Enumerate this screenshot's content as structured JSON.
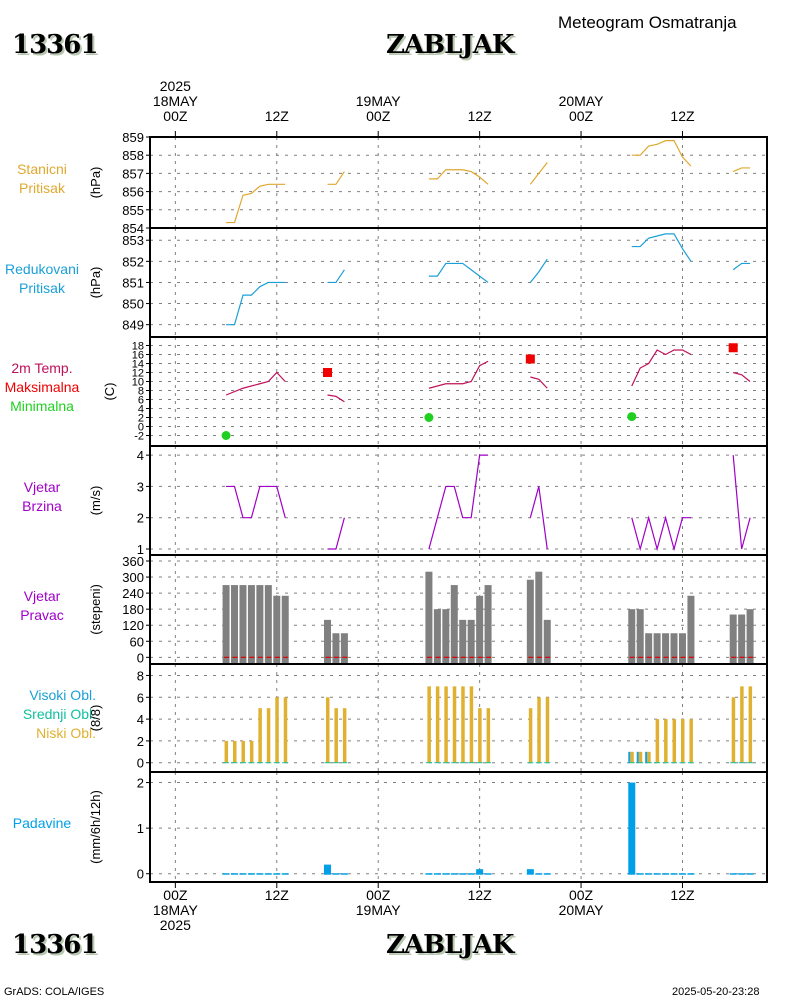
{
  "header": {
    "station_id": "13361",
    "station_name": "ZABLJAK",
    "subtitle": "Meteogram Osmatranja"
  },
  "footer": {
    "station_id": "13361",
    "station_name": "ZABLJAK",
    "credit": "GrADS: COLA/IGES",
    "timestamp": "2025-05-20-23:28"
  },
  "time_axis": {
    "top_labels": [
      {
        "lines": [
          "2025",
          "18MAY",
          "00Z"
        ]
      },
      {
        "lines": [
          "",
          "",
          "12Z"
        ]
      },
      {
        "lines": [
          "",
          "19MAY",
          "00Z"
        ]
      },
      {
        "lines": [
          "",
          "",
          "12Z"
        ]
      },
      {
        "lines": [
          "",
          "20MAY",
          "00Z"
        ]
      },
      {
        "lines": [
          "",
          "",
          "12Z"
        ]
      }
    ],
    "bottom_labels": [
      {
        "lines": [
          "00Z",
          "18MAY",
          "2025"
        ]
      },
      {
        "lines": [
          "12Z",
          "",
          ""
        ]
      },
      {
        "lines": [
          "00Z",
          "19MAY",
          ""
        ]
      },
      {
        "lines": [
          "12Z",
          "",
          ""
        ]
      },
      {
        "lines": [
          "00Z",
          "20MAY",
          ""
        ]
      },
      {
        "lines": [
          "12Z",
          "",
          ""
        ]
      }
    ],
    "start": "2025-05-18 00Z",
    "hours_range": [
      -3,
      70
    ]
  },
  "colors": {
    "station_pressure": "#e0a830",
    "reduced_pressure": "#1aa0d8",
    "temp": "#c0105a",
    "tmax": "#f00000",
    "tmin": "#20d020",
    "wind": "#a000c8",
    "wind_dir_bar": "#808080",
    "calm_marker": "#e00000",
    "cloud_high": "#1aa0d8",
    "cloud_mid": "#10c0a0",
    "cloud_low": "#e0b030",
    "precip": "#00a0e8"
  },
  "chart_data": [
    {
      "type": "line",
      "id": "station_pressure",
      "labels": [
        "Stanicni",
        "Pritisak"
      ],
      "ylabel": "(hPa)",
      "ylim": [
        854,
        859
      ],
      "yticks": [
        854,
        855,
        856,
        857,
        858,
        859
      ],
      "series": [
        {
          "name": "Stanicni Pritisak",
          "segments": [
            {
              "x": [
                6,
                7,
                8,
                9,
                10,
                11,
                12,
                13
              ],
              "y": [
                854.3,
                854.3,
                855.8,
                855.9,
                856.3,
                856.4,
                856.4,
                856.4
              ]
            },
            {
              "x": [
                18,
                19,
                20
              ],
              "y": [
                856.4,
                856.4,
                857.1
              ]
            },
            {
              "x": [
                30,
                31,
                32,
                33,
                34,
                35,
                36,
                37
              ],
              "y": [
                856.7,
                856.7,
                857.2,
                857.2,
                857.2,
                857.1,
                856.8,
                856.4
              ]
            },
            {
              "x": [
                42,
                43,
                44
              ],
              "y": [
                856.4,
                857.0,
                857.6
              ]
            },
            {
              "x": [
                54,
                55,
                56,
                57,
                58,
                59,
                60,
                61
              ],
              "y": [
                858.0,
                858.0,
                858.5,
                858.6,
                858.8,
                858.8,
                857.9,
                857.4
              ]
            },
            {
              "x": [
                66,
                67,
                68
              ],
              "y": [
                857.1,
                857.3,
                857.3
              ]
            }
          ]
        }
      ]
    },
    {
      "type": "line",
      "id": "reduced_pressure",
      "labels": [
        "Redukovani",
        "Pritisak"
      ],
      "ylabel": "(hPa)",
      "ylim": [
        848.7,
        853.2
      ],
      "yticks": [
        849,
        850,
        851,
        852,
        853
      ],
      "series": [
        {
          "name": "Redukovani Pritisak",
          "segments": [
            {
              "x": [
                6,
                7,
                8,
                9,
                10,
                11,
                12,
                13
              ],
              "y": [
                849.0,
                849.0,
                850.4,
                850.4,
                850.8,
                851.0,
                851.0,
                851.0
              ]
            },
            {
              "x": [
                18,
                19,
                20
              ],
              "y": [
                851.0,
                851.0,
                851.6
              ]
            },
            {
              "x": [
                30,
                31,
                32,
                33,
                34,
                35,
                36,
                37
              ],
              "y": [
                851.3,
                851.3,
                851.9,
                851.9,
                851.9,
                851.6,
                851.3,
                851.0
              ]
            },
            {
              "x": [
                42,
                43,
                44
              ],
              "y": [
                851.0,
                851.5,
                852.1
              ]
            },
            {
              "x": [
                54,
                55,
                56,
                57,
                58,
                59,
                60,
                61
              ],
              "y": [
                852.7,
                852.7,
                853.1,
                853.2,
                853.3,
                853.3,
                852.6,
                852.0
              ]
            },
            {
              "x": [
                66,
                67,
                68
              ],
              "y": [
                851.6,
                851.9,
                851.9
              ]
            }
          ]
        }
      ]
    },
    {
      "type": "line",
      "id": "temperature",
      "labels": [
        "2m Temp.",
        "Maksimalna",
        "Minimalna"
      ],
      "ylabel": "(C)",
      "ylim": [
        -3,
        19
      ],
      "yticks": [
        -2,
        0,
        2,
        4,
        6,
        8,
        10,
        12,
        14,
        16,
        18
      ],
      "series": [
        {
          "name": "2m Temp.",
          "segments": [
            {
              "x": [
                6,
                8,
                10,
                11,
                12,
                13
              ],
              "y": [
                7,
                8.5,
                9.5,
                10,
                12,
                10
              ]
            },
            {
              "x": [
                18,
                19,
                20
              ],
              "y": [
                7,
                6.7,
                5.5
              ]
            },
            {
              "x": [
                30,
                32,
                34,
                35,
                36,
                37
              ],
              "y": [
                8.5,
                9.5,
                9.5,
                10,
                13.5,
                14.5
              ]
            },
            {
              "x": [
                42,
                43,
                44
              ],
              "y": [
                11,
                10.5,
                8.5
              ]
            },
            {
              "x": [
                54,
                55,
                56,
                57,
                58,
                59,
                60,
                61
              ],
              "y": [
                9,
                13,
                14,
                17,
                16,
                17,
                17,
                16
              ]
            },
            {
              "x": [
                66,
                67,
                68
              ],
              "y": [
                12,
                11.5,
                10
              ]
            }
          ]
        },
        {
          "name": "Maksimalna",
          "points": [
            {
              "x": 18,
              "y": 12
            },
            {
              "x": 42,
              "y": 15
            },
            {
              "x": 66,
              "y": 17.5
            }
          ]
        },
        {
          "name": "Minimalna",
          "points": [
            {
              "x": 6,
              "y": -2
            },
            {
              "x": 30,
              "y": 2
            },
            {
              "x": 54,
              "y": 2.2
            }
          ]
        }
      ]
    },
    {
      "type": "line",
      "id": "wind_speed",
      "labels": [
        "Vjetar",
        "Brzina"
      ],
      "ylabel": "(m/s)",
      "ylim": [
        1,
        4.1
      ],
      "yticks": [
        1,
        2,
        3,
        4
      ],
      "series": [
        {
          "name": "Vjetar Brzina",
          "segments": [
            {
              "x": [
                6,
                7,
                8,
                9,
                10,
                11,
                12,
                13
              ],
              "y": [
                3,
                3,
                2,
                2,
                3,
                3,
                3,
                2
              ]
            },
            {
              "x": [
                18,
                19,
                20
              ],
              "y": [
                1,
                1,
                2
              ]
            },
            {
              "x": [
                30,
                32,
                33,
                34,
                35,
                36,
                37
              ],
              "y": [
                1,
                3,
                3,
                2,
                2,
                4,
                4
              ]
            },
            {
              "x": [
                42,
                43,
                44
              ],
              "y": [
                2,
                3,
                1
              ]
            },
            {
              "x": [
                54,
                55,
                56,
                57,
                58,
                59,
                60,
                61
              ],
              "y": [
                2,
                1,
                2,
                1,
                2,
                1,
                2,
                2
              ]
            },
            {
              "x": [
                66,
                67,
                68
              ],
              "y": [
                4,
                1,
                2
              ]
            }
          ]
        }
      ]
    },
    {
      "type": "bar",
      "id": "wind_direction",
      "labels": [
        "Vjetar",
        "Pravac"
      ],
      "ylabel": "(stepeni)",
      "ylim": [
        -10,
        360
      ],
      "yticks": [
        0,
        60,
        120,
        180,
        240,
        300,
        360
      ],
      "x": [
        6,
        7,
        8,
        9,
        10,
        11,
        12,
        13,
        18,
        19,
        20,
        30,
        31,
        32,
        33,
        34,
        35,
        36,
        37,
        42,
        43,
        44,
        54,
        55,
        56,
        57,
        58,
        59,
        60,
        61,
        66,
        67,
        68
      ],
      "values": [
        270,
        270,
        270,
        270,
        270,
        270,
        230,
        230,
        140,
        90,
        90,
        320,
        180,
        180,
        270,
        140,
        140,
        230,
        270,
        290,
        320,
        140,
        180,
        180,
        90,
        90,
        90,
        90,
        90,
        230,
        160,
        160,
        180
      ]
    },
    {
      "type": "bar",
      "id": "clouds",
      "labels": [
        "Visoki Obl.",
        "Srednji Obl.",
        "Niski Obl."
      ],
      "ylabel": "(8/8)",
      "ylim": [
        -0.3,
        8.5
      ],
      "yticks": [
        0,
        2,
        4,
        6,
        8
      ],
      "x": [
        6,
        7,
        8,
        9,
        10,
        11,
        12,
        13,
        18,
        19,
        20,
        30,
        31,
        32,
        33,
        34,
        35,
        36,
        37,
        42,
        43,
        44,
        54,
        55,
        56,
        57,
        58,
        59,
        60,
        61,
        66,
        67,
        68
      ],
      "series": [
        {
          "name": "Visoki Obl.",
          "values": [
            0,
            0,
            0,
            0,
            0,
            0,
            0,
            0,
            0,
            0,
            0,
            0,
            0,
            0,
            0,
            0,
            0,
            0,
            0,
            0,
            0,
            0,
            1,
            1,
            1,
            0,
            0,
            0,
            0,
            0,
            0,
            0,
            0
          ]
        },
        {
          "name": "Srednji Obl.",
          "values": [
            0,
            0,
            0,
            0,
            0,
            0,
            0,
            0,
            0,
            0,
            0,
            0,
            0,
            0,
            0,
            0,
            0,
            0,
            0,
            0,
            0,
            0,
            0,
            0,
            0,
            0,
            0,
            0,
            0,
            0,
            0,
            0,
            0
          ]
        },
        {
          "name": "Niski Obl.",
          "values": [
            2,
            2,
            2,
            2,
            5,
            5,
            6,
            6,
            6,
            5,
            5,
            7,
            7,
            7,
            7,
            7,
            7,
            5,
            5,
            5,
            6,
            6,
            1,
            1,
            1,
            4,
            4,
            4,
            4,
            4,
            6,
            7,
            7
          ]
        }
      ]
    },
    {
      "type": "bar",
      "id": "precipitation",
      "labels": [
        "Padavine"
      ],
      "ylabel": "(mm/6h/12h)",
      "ylim": [
        -0.05,
        2.1
      ],
      "yticks": [
        0,
        1,
        2
      ],
      "x": [
        6,
        7,
        8,
        9,
        10,
        11,
        12,
        13,
        18,
        19,
        20,
        30,
        31,
        32,
        33,
        34,
        35,
        36,
        37,
        42,
        43,
        44,
        54,
        55,
        56,
        57,
        58,
        59,
        60,
        61,
        66,
        67,
        68
      ],
      "values": [
        0.01,
        0.01,
        0.01,
        0.01,
        0.01,
        0.01,
        0.01,
        0.01,
        0.2,
        0.01,
        0.01,
        0.01,
        0.01,
        0.01,
        0.01,
        0.01,
        0.01,
        0.1,
        0.01,
        0.1,
        0.01,
        0.01,
        2.0,
        0.01,
        0.01,
        0.01,
        0.01,
        0.01,
        0.01,
        0.01,
        0.01,
        0.01,
        0.01
      ]
    }
  ]
}
